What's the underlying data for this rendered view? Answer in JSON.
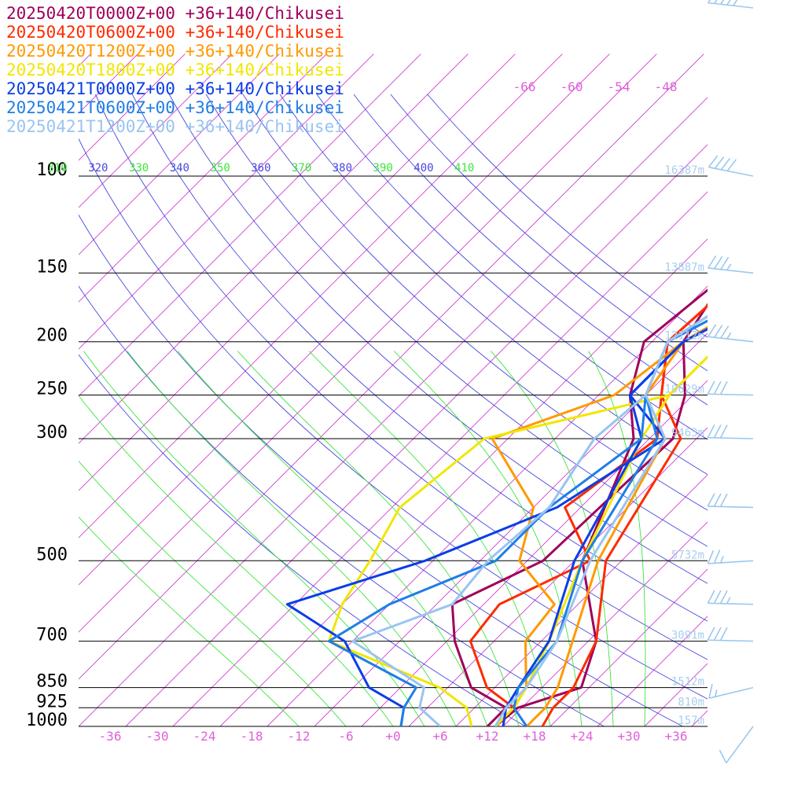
{
  "chart_data": {
    "type": "line",
    "diagram": "skew-t",
    "legend_placement": "top-left",
    "xlim": [
      -40,
      40
    ],
    "pressure_range": [
      1000,
      100
    ],
    "x_ticks": [
      {
        "value": -36,
        "label": "-36"
      },
      {
        "value": -30,
        "label": "-30"
      },
      {
        "value": -24,
        "label": "-24"
      },
      {
        "value": -18,
        "label": "-18"
      },
      {
        "value": -12,
        "label": "-12"
      },
      {
        "value": -6,
        "label": "-6"
      },
      {
        "value": 0,
        "label": "+0"
      },
      {
        "value": 6,
        "label": "+6"
      },
      {
        "value": 12,
        "label": "+12"
      },
      {
        "value": 18,
        "label": "+18"
      },
      {
        "value": 24,
        "label": "+24"
      },
      {
        "value": 30,
        "label": "+30"
      },
      {
        "value": 36,
        "label": "+36"
      }
    ],
    "pressure_levels": [
      {
        "p": 100,
        "label": "100",
        "height": "16387m"
      },
      {
        "p": 150,
        "label": "150",
        "height": "13887m"
      },
      {
        "p": 200,
        "label": "200",
        "height": "12112m"
      },
      {
        "p": 250,
        "label": "250",
        "height": "10629m"
      },
      {
        "p": 300,
        "label": "300",
        "height": "9463m"
      },
      {
        "p": 500,
        "label": "500",
        "height": "5732m"
      },
      {
        "p": 700,
        "label": "700",
        "height": "3091m"
      },
      {
        "p": 850,
        "label": "850",
        "height": "1512m"
      },
      {
        "p": 925,
        "label": "925",
        "height": "810m"
      },
      {
        "p": 1000,
        "label": "1000",
        "height": "157m"
      }
    ],
    "theta_labels": [
      "310",
      "320",
      "330",
      "340",
      "350",
      "360",
      "370",
      "380",
      "390",
      "400",
      "410"
    ],
    "upper_temp_labels": [
      "-66",
      "-60",
      "-54",
      "-48"
    ],
    "series": [
      {
        "name": "20250420T0000Z+00 +36+140/Chikusei",
        "color": "#a0005a",
        "temp": [
          [
            1000,
            13
          ],
          [
            925,
            13.5
          ],
          [
            850,
            19
          ],
          [
            700,
            15
          ],
          [
            500,
            3
          ],
          [
            300,
            -6
          ],
          [
            250,
            -12
          ],
          [
            200,
            -17
          ],
          [
            150,
            -15
          ],
          [
            100,
            0
          ]
        ],
        "dew": [
          [
            1000,
            12
          ],
          [
            925,
            12
          ],
          [
            850,
            5
          ],
          [
            700,
            -3
          ],
          [
            600,
            -8
          ],
          [
            500,
            -2
          ],
          [
            300,
            -1
          ],
          [
            250,
            -5
          ],
          [
            200,
            -12
          ],
          [
            150,
            -15
          ],
          [
            100,
            -3
          ]
        ]
      },
      {
        "name": "20250420T0600Z+00 +36+140/Chikusei",
        "color": "#ff2a00",
        "temp": [
          [
            1000,
            19
          ],
          [
            925,
            18
          ],
          [
            850,
            18
          ],
          [
            700,
            15
          ],
          [
            500,
            6
          ],
          [
            300,
            0
          ],
          [
            250,
            -8
          ],
          [
            200,
            -14
          ],
          [
            150,
            -13
          ],
          [
            100,
            0
          ]
        ],
        "dew": [
          [
            1000,
            13
          ],
          [
            925,
            13
          ],
          [
            850,
            7
          ],
          [
            700,
            -1
          ],
          [
            600,
            -2
          ],
          [
            500,
            4
          ],
          [
            400,
            -6
          ],
          [
            300,
            -3
          ],
          [
            250,
            -8
          ],
          [
            200,
            -14
          ],
          [
            150,
            -13
          ],
          [
            100,
            -2
          ]
        ]
      },
      {
        "name": "20250420T1200Z+00 +36+140/Chikusei",
        "color": "#ff9900",
        "temp": [
          [
            1000,
            17
          ],
          [
            925,
            17
          ],
          [
            850,
            16
          ],
          [
            700,
            12
          ],
          [
            500,
            5
          ],
          [
            300,
            -2
          ],
          [
            250,
            -10
          ],
          [
            200,
            -12
          ],
          [
            150,
            -6
          ],
          [
            100,
            1
          ]
        ],
        "dew": [
          [
            1000,
            13
          ],
          [
            925,
            13
          ],
          [
            850,
            12
          ],
          [
            700,
            6
          ],
          [
            600,
            5
          ],
          [
            500,
            -5
          ],
          [
            400,
            -10
          ],
          [
            300,
            -24
          ],
          [
            250,
            -14
          ],
          [
            200,
            -12
          ],
          [
            150,
            -6
          ],
          [
            100,
            1
          ]
        ]
      },
      {
        "name": "20250420T1800Z+00 +36+140/Chikusei",
        "color": "#f2e600",
        "temp": [
          [
            1000,
            13
          ],
          [
            925,
            13
          ],
          [
            850,
            12
          ],
          [
            700,
            9
          ],
          [
            500,
            3
          ],
          [
            300,
            -5
          ],
          [
            250,
            -7
          ],
          [
            200,
            -7
          ],
          [
            150,
            -3
          ],
          [
            100,
            2
          ]
        ],
        "dew": [
          [
            1000,
            10
          ],
          [
            925,
            7
          ],
          [
            850,
            1
          ],
          [
            700,
            -19
          ],
          [
            600,
            -22
          ],
          [
            500,
            -24
          ],
          [
            400,
            -27
          ],
          [
            300,
            -25
          ],
          [
            250,
            -7
          ],
          [
            200,
            -7
          ],
          [
            150,
            -3
          ],
          [
            100,
            2
          ]
        ]
      },
      {
        "name": "20250421T0000Z+00 +36+140/Chikusei",
        "color": "#0a3ee6",
        "temp": [
          [
            1000,
            14
          ],
          [
            925,
            12
          ],
          [
            850,
            11
          ],
          [
            700,
            9
          ],
          [
            500,
            2
          ],
          [
            300,
            -5
          ],
          [
            250,
            -12
          ],
          [
            200,
            -12
          ],
          [
            150,
            -4
          ],
          [
            100,
            2
          ]
        ],
        "dew": [
          [
            1000,
            1
          ],
          [
            925,
            -1
          ],
          [
            850,
            -8
          ],
          [
            700,
            -17
          ],
          [
            600,
            -29
          ],
          [
            500,
            -17
          ],
          [
            400,
            -7
          ],
          [
            300,
            -2
          ],
          [
            250,
            -12
          ],
          [
            200,
            -12
          ],
          [
            150,
            -4
          ],
          [
            100,
            2
          ]
        ]
      },
      {
        "name": "20250421T0600Z+00 +36+140/Chikusei",
        "color": "#1f7ee6",
        "temp": [
          [
            1000,
            17
          ],
          [
            925,
            13
          ],
          [
            850,
            11
          ],
          [
            700,
            10
          ],
          [
            500,
            3
          ],
          [
            300,
            -3
          ],
          [
            250,
            -10
          ],
          [
            200,
            -14
          ],
          [
            150,
            -6
          ],
          [
            100,
            1
          ]
        ],
        "dew": [
          [
            1000,
            1
          ],
          [
            925,
            -1
          ],
          [
            850,
            -2
          ],
          [
            700,
            -19
          ],
          [
            600,
            -16
          ],
          [
            500,
            -8
          ],
          [
            400,
            -8
          ],
          [
            300,
            -5
          ],
          [
            250,
            -10
          ],
          [
            200,
            -14
          ],
          [
            150,
            -6
          ],
          [
            100,
            1
          ]
        ]
      },
      {
        "name": "20250421T1200Z+00 +36+140/Chikusei",
        "color": "#99c4f0",
        "temp": [
          [
            1000,
            13
          ],
          [
            925,
            12
          ],
          [
            850,
            12
          ],
          [
            700,
            10
          ],
          [
            500,
            4
          ],
          [
            300,
            -2
          ],
          [
            250,
            -10
          ],
          [
            200,
            -14
          ],
          [
            150,
            -9
          ],
          [
            100,
            -1
          ]
        ],
        "dew": [
          [
            1000,
            6
          ],
          [
            925,
            1
          ],
          [
            850,
            -1
          ],
          [
            700,
            -16
          ],
          [
            600,
            -8
          ],
          [
            500,
            -9
          ],
          [
            400,
            -8
          ],
          [
            300,
            -11
          ],
          [
            250,
            -10
          ],
          [
            200,
            -14
          ],
          [
            150,
            -9
          ],
          [
            100,
            -1
          ]
        ]
      }
    ],
    "wind_barbs": [
      {
        "p": 70,
        "speed": 50,
        "dir": 260
      },
      {
        "p": 100,
        "speed": 40,
        "dir": 265
      },
      {
        "p": 150,
        "speed": 35,
        "dir": 260
      },
      {
        "p": 200,
        "speed": 35,
        "dir": 260
      },
      {
        "p": 250,
        "speed": 30,
        "dir": 255
      },
      {
        "p": 300,
        "speed": 30,
        "dir": 255
      },
      {
        "p": 400,
        "speed": 30,
        "dir": 255
      },
      {
        "p": 500,
        "speed": 25,
        "dir": 250
      },
      {
        "p": 600,
        "speed": 35,
        "dir": 255
      },
      {
        "p": 700,
        "speed": 30,
        "dir": 255
      },
      {
        "p": 850,
        "speed": 15,
        "dir": 240
      },
      {
        "p": 1000,
        "speed": 10,
        "dir": 200
      }
    ]
  }
}
